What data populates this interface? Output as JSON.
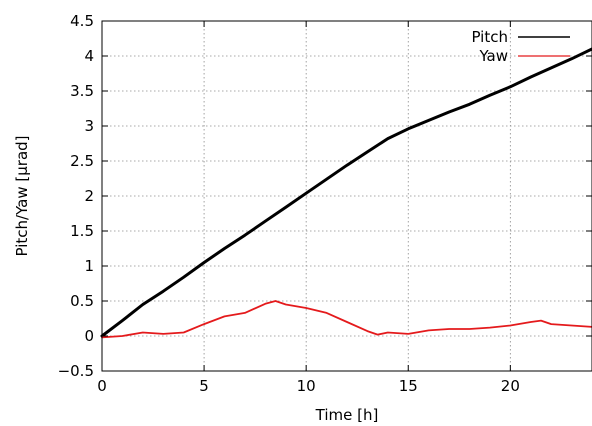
{
  "chart_data": {
    "type": "line",
    "xlabel": "Time [h]",
    "ylabel": "Pitch/Yaw [µrad]",
    "xlim": [
      0,
      24
    ],
    "ylim": [
      -0.5,
      4.5
    ],
    "xticks": [
      0,
      5,
      10,
      15,
      20
    ],
    "xtick_labels": [
      "0",
      "5",
      "10",
      "15",
      "20"
    ],
    "yticks": [
      -0.5,
      0,
      0.5,
      1,
      1.5,
      2,
      2.5,
      3,
      3.5,
      4,
      4.5
    ],
    "ytick_labels": [
      "−0.5",
      "0",
      "0.5",
      "1",
      "1.5",
      "2",
      "2.5",
      "3",
      "3.5",
      "4",
      "4.5"
    ],
    "grid": true,
    "legend_position": "top-right",
    "series": [
      {
        "name": "Pitch",
        "color": "#000000",
        "x": [
          0,
          1,
          2,
          3,
          4,
          5,
          6,
          7,
          8,
          9,
          10,
          11,
          12,
          13,
          14,
          15,
          16,
          17,
          18,
          19,
          20,
          21,
          22,
          23,
          24
        ],
        "y": [
          0.0,
          0.22,
          0.45,
          0.64,
          0.84,
          1.05,
          1.25,
          1.44,
          1.64,
          1.84,
          2.04,
          2.24,
          2.44,
          2.63,
          2.82,
          2.96,
          3.08,
          3.2,
          3.31,
          3.44,
          3.56,
          3.7,
          3.83,
          3.96,
          4.1
        ]
      },
      {
        "name": "Yaw",
        "color": "#e41a1c",
        "x": [
          0,
          1,
          2,
          3,
          4,
          5,
          6,
          7,
          8,
          8.5,
          9,
          10,
          11,
          12,
          13,
          13.5,
          14,
          15,
          16,
          17,
          18,
          19,
          20,
          21,
          21.5,
          22,
          23,
          24
        ],
        "y": [
          -0.02,
          0.0,
          0.05,
          0.03,
          0.05,
          0.17,
          0.28,
          0.33,
          0.46,
          0.5,
          0.45,
          0.4,
          0.33,
          0.2,
          0.07,
          0.02,
          0.05,
          0.03,
          0.08,
          0.1,
          0.1,
          0.12,
          0.15,
          0.2,
          0.22,
          0.17,
          0.15,
          0.13
        ]
      }
    ]
  }
}
